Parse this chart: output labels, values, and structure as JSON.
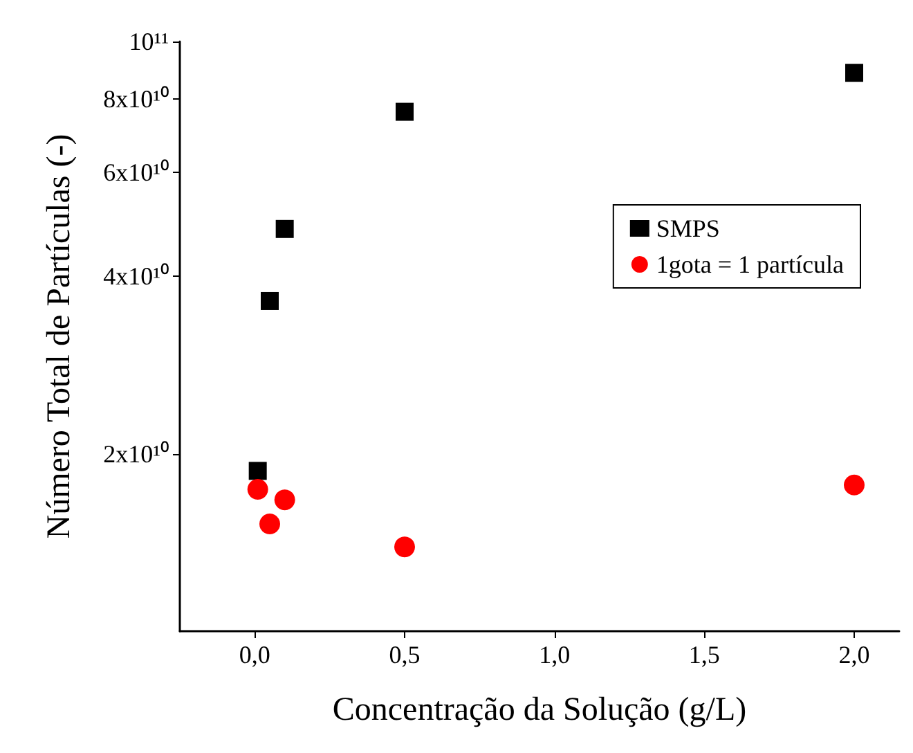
{
  "chart_data": {
    "type": "scatter",
    "xlabel": "Concentração da Solução (g/L)",
    "ylabel": "Número Total de Partículas (-)",
    "series": [
      {
        "name": "SMPS",
        "color": "#000000",
        "marker": "square",
        "x": [
          0.01,
          0.05,
          0.1,
          0.5,
          2.0
        ],
        "values": [
          18700000000.0,
          36300000000.0,
          48100000000.0,
          76000000000.0,
          88500000000.0
        ]
      },
      {
        "name": "1gota = 1 partícula",
        "color": "#ff0000",
        "marker": "circle",
        "x": [
          0.01,
          0.05,
          0.1,
          0.5,
          2.0
        ],
        "values": [
          17400000000.0,
          15200000000.0,
          16700000000.0,
          13900000000.0,
          17700000000.0
        ]
      }
    ],
    "xlim": [
      -0.25,
      2.15
    ],
    "xticks": [
      {
        "value": 0,
        "label": "0,0"
      },
      {
        "value": 0.5,
        "label": "0,5"
      },
      {
        "value": 1,
        "label": "1,0"
      },
      {
        "value": 1.5,
        "label": "1,5"
      },
      {
        "value": 2,
        "label": "2,0"
      }
    ],
    "ylim": [
      10000000000.0,
      100000000000.0
    ],
    "yticks": [
      {
        "value": 20000000000.0,
        "label": "2x10¹⁰"
      },
      {
        "value": 40000000000.0,
        "label": "4x10¹⁰"
      },
      {
        "value": 60000000000.0,
        "label": "6x10¹⁰"
      },
      {
        "value": 80000000000.0,
        "label": "8x10¹⁰"
      },
      {
        "value": 100000000000.0,
        "label": "10¹¹"
      }
    ],
    "log": "y",
    "grid": false,
    "legend": "right"
  }
}
